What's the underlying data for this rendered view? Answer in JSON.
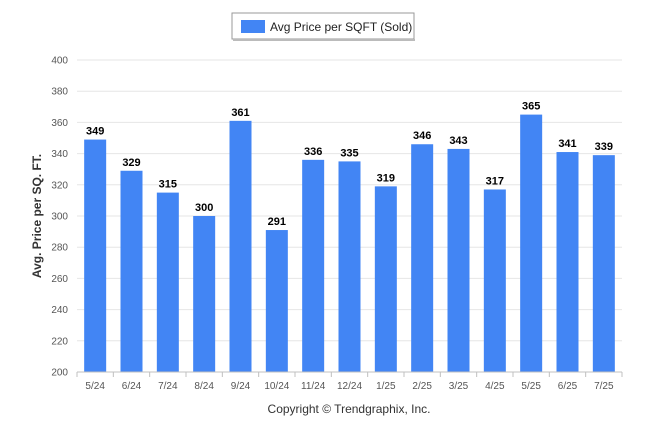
{
  "chart_data": {
    "type": "bar",
    "categories": [
      "5/24",
      "6/24",
      "7/24",
      "8/24",
      "9/24",
      "10/24",
      "11/24",
      "12/24",
      "1/25",
      "2/25",
      "3/25",
      "4/25",
      "5/25",
      "6/25",
      "7/25"
    ],
    "series": [
      {
        "name": "Avg Price per SQFT (Sold)",
        "values": [
          349,
          329,
          315,
          300,
          361,
          291,
          336,
          335,
          319,
          346,
          343,
          317,
          365,
          341,
          339
        ],
        "color": "#4285f4"
      }
    ],
    "ylabel": "Avg. Price per SQ. FT.",
    "ylim": [
      200,
      400
    ],
    "yticks": [
      200,
      220,
      240,
      260,
      280,
      300,
      320,
      340,
      360,
      380,
      400
    ],
    "grid": true,
    "legend_position": "top-center",
    "data_labels": true
  },
  "footer": "Copyright © Trendgraphix, Inc."
}
